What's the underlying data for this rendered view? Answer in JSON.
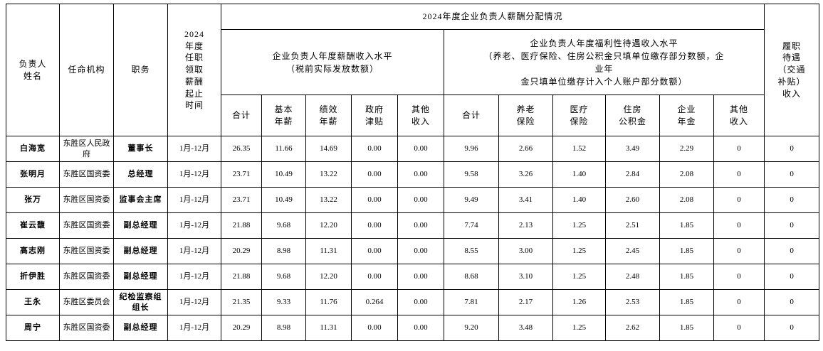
{
  "table": {
    "main_title": "2024年度企业负责人薪酬分配情况",
    "headers": {
      "name": "负责人\n姓名",
      "agency": "任命机构",
      "position": "职务",
      "period": "2024\n年度\n任职\n领取\n薪酬\n起止\n时间",
      "salary_group": "企业负责人年度薪酬收入水平\n（税前实际发放数额）",
      "welfare_group": "企业负责人年度福利性待遇收入水平\n（养老、医疗保险、住房公积金只填单位缴存部分数额，企\n业年\n金只填单位缴存计入个人账户部分数额）",
      "duty_allowance": "履职\n待遇\n（交通\n补贴）\n收入",
      "salary_cols": {
        "total": "合计",
        "base": "基本\n年薪",
        "performance": "绩效\n年薪",
        "gov_allowance": "政府\n津贴",
        "other": "其他\n收入"
      },
      "welfare_cols": {
        "total": "合计",
        "pension": "养老\n保险",
        "medical": "医疗\n保险",
        "housing_fund": "住房\n公积金",
        "annuity": "企业\n年金",
        "other": "其他\n收入"
      }
    },
    "col_keys": [
      "name",
      "agency",
      "position",
      "period",
      "salary-total",
      "base-salary",
      "performance-salary",
      "gov-allowance",
      "salary-other-income",
      "welfare-total",
      "pension-insurance",
      "medical-insurance",
      "housing-fund",
      "enterprise-annuity",
      "welfare-other-income",
      "duty-allowance-income"
    ],
    "rows": [
      [
        "白海宽",
        "东胜区人民政府",
        "董事长",
        "1月-12月",
        "26.35",
        "11.66",
        "14.69",
        "0.00",
        "0.00",
        "9.96",
        "2.66",
        "1.52",
        "3.49",
        "2.29",
        "0",
        "0"
      ],
      [
        "张明月",
        "东胜区国资委",
        "总经理",
        "1月-12月",
        "23.71",
        "10.49",
        "13.22",
        "0.00",
        "0.00",
        "9.58",
        "3.26",
        "1.40",
        "2.84",
        "2.08",
        "0",
        "0"
      ],
      [
        "张万",
        "东胜区国资委",
        "监事会主席",
        "1月-12月",
        "23.71",
        "10.49",
        "13.22",
        "0.00",
        "0.00",
        "9.49",
        "3.41",
        "1.40",
        "2.60",
        "2.08",
        "0",
        "0"
      ],
      [
        "崔云馥",
        "东胜区国资委",
        "副总经理",
        "1月-12月",
        "21.88",
        "9.68",
        "12.20",
        "0.00",
        "0.00",
        "7.74",
        "2.13",
        "1.25",
        "2.51",
        "1.85",
        "0",
        "0"
      ],
      [
        "高志刚",
        "东胜区国资委",
        "副总经理",
        "1月-12月",
        "20.29",
        "8.98",
        "11.31",
        "0.00",
        "0.00",
        "8.55",
        "3.00",
        "1.25",
        "2.45",
        "1.85",
        "0",
        "0"
      ],
      [
        "折伊胜",
        "东胜区国资委",
        "副总经理",
        "1月-12月",
        "21.88",
        "9.68",
        "12.20",
        "0.00",
        "0.00",
        "8.68",
        "3.10",
        "1.25",
        "2.48",
        "1.85",
        "0",
        "0"
      ],
      [
        "王永",
        "东胜区委员会",
        "纪检监察组\n组长",
        "1月-12月",
        "21.35",
        "9.33",
        "11.76",
        "0.264",
        "0.00",
        "7.81",
        "2.17",
        "1.26",
        "2.53",
        "1.85",
        "0",
        "0"
      ],
      [
        "周宁",
        "东胜区国资委",
        "副总经理",
        "1月-12月",
        "20.29",
        "8.98",
        "11.31",
        "0.00",
        "0.00",
        "9.20",
        "3.48",
        "1.25",
        "2.62",
        "1.85",
        "0",
        "0"
      ]
    ]
  }
}
